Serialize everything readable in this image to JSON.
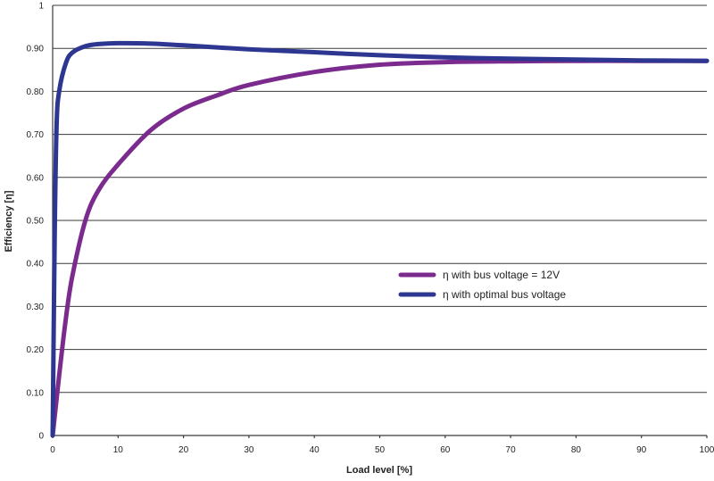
{
  "chart_data": {
    "type": "line",
    "xlabel": "Load level [%]",
    "ylabel": "Efficiency [η]",
    "xlim": [
      0,
      100
    ],
    "ylim": [
      0,
      1
    ],
    "x_ticks": [
      "0",
      "10",
      "20",
      "30",
      "40",
      "50",
      "60",
      "70",
      "80",
      "90",
      "100"
    ],
    "y_ticks": [
      "0",
      "0.10",
      "0.20",
      "0.30",
      "0.40",
      "0.50",
      "0.60",
      "0.70",
      "0.80",
      "0.90",
      "1"
    ],
    "grid": "horizontal",
    "legend_position": "middle-right",
    "series": [
      {
        "name": "η with bus voltage = 12V",
        "color": "#7b2a8e",
        "x": [
          0,
          1,
          2,
          3,
          5,
          7,
          10,
          15,
          20,
          25,
          30,
          40,
          50,
          60,
          70,
          80,
          90,
          100
        ],
        "y": [
          0.0,
          0.14,
          0.27,
          0.37,
          0.5,
          0.57,
          0.63,
          0.71,
          0.76,
          0.79,
          0.815,
          0.845,
          0.862,
          0.868,
          0.87,
          0.871,
          0.871,
          0.871
        ]
      },
      {
        "name": "η with optimal bus voltage",
        "color": "#2d3690",
        "x": [
          0,
          0.3,
          0.6,
          1,
          2,
          3,
          5,
          7,
          10,
          15,
          20,
          30,
          40,
          50,
          60,
          70,
          80,
          90,
          100
        ],
        "y": [
          0.0,
          0.45,
          0.72,
          0.8,
          0.865,
          0.89,
          0.905,
          0.91,
          0.912,
          0.911,
          0.907,
          0.898,
          0.891,
          0.884,
          0.879,
          0.876,
          0.874,
          0.872,
          0.871
        ]
      }
    ]
  }
}
